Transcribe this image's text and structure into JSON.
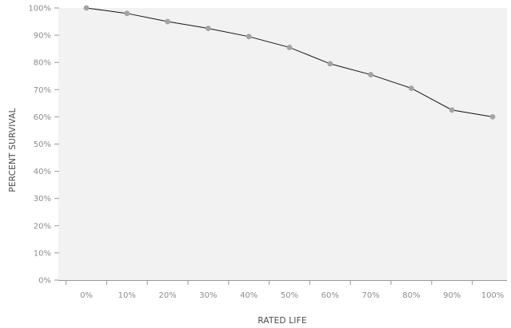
{
  "chart_data": {
    "type": "line",
    "title": "",
    "xlabel": "RATED LIFE",
    "ylabel": "PERCENT SURVIVAL",
    "x_categories": [
      "0%",
      "10%",
      "20%",
      "30%",
      "40%",
      "50%",
      "60%",
      "70%",
      "80%",
      "90%",
      "100%"
    ],
    "y_ticks": [
      "0%",
      "10%",
      "20%",
      "30%",
      "40%",
      "50%",
      "60%",
      "70%",
      "80%",
      "90%",
      "100%"
    ],
    "ylim": [
      0,
      100
    ],
    "grid": false,
    "series": [
      {
        "values": [
          100,
          98,
          95,
          92.5,
          89.5,
          85.5,
          79.5,
          75.5,
          70.5,
          62.5,
          60
        ],
        "line_color": "#111111",
        "marker_color": "#a3a3a3"
      }
    ],
    "plot_background": "#f2f2f2",
    "axis_color": "#9a9a9a"
  }
}
